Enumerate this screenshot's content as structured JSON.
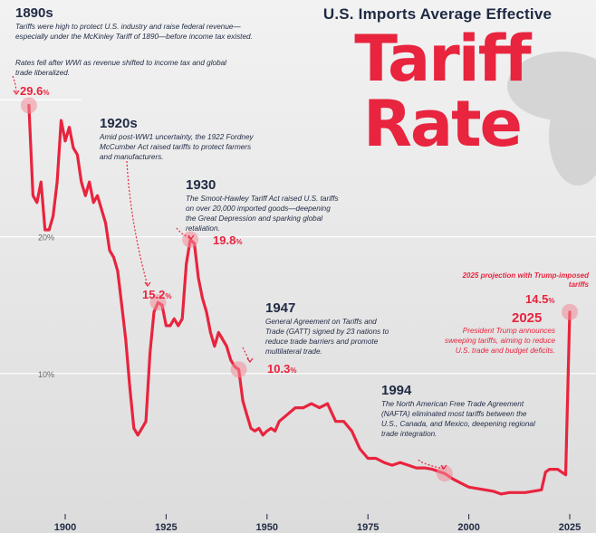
{
  "title": {
    "subtitle": "U.S. Imports Average Effective",
    "line1": "Tariff",
    "line2": "Rate"
  },
  "colors": {
    "accent": "#e8243e",
    "navy": "#1f2a44",
    "background": "#ececec"
  },
  "annotations": {
    "a1890s": {
      "era": "1890s",
      "note": "Tariffs were high to protect U.S. industry and raise federal revenue—especially under the McKinley Tariff of 1890—before income tax existed.",
      "note2": "Rates fell after WWI as revenue shifted to income tax and global trade liberalized."
    },
    "a1920s": {
      "era": "1920s",
      "note": "Amid post-WW1 uncertainty, the 1922 Fordney McCumber Act raised tariffs to protect farmers and manufacturers."
    },
    "a1930": {
      "era": "1930",
      "note": "The Smoot-Hawley Tariff Act raised U.S. tariffs on over 20,000 imported goods—deepening the Great Depression and sparking global retaliation."
    },
    "a1947": {
      "era": "1947",
      "note": "General Agreement on Tariffs and Trade (GATT) signed by 23 nations to reduce trade barriers and promote multilateral trade."
    },
    "a1994": {
      "era": "1994",
      "note": "The North American Free Trade Agreement (NAFTA) eliminated most tariffs between the U.S., Canada, and Mexico, deepening regional trade integration."
    },
    "a2025": {
      "era": "2025",
      "note": "President Trump announces sweeping tariffs, aiming to reduce U.S. trade and budget deficits.",
      "projection": "2025 projection with Trump-imposed tariffs"
    }
  },
  "chart_data": {
    "type": "line",
    "title": "U.S. Imports Average Effective Tariff Rate",
    "xlabel": "",
    "ylabel": "",
    "xlim": [
      1890,
      2025
    ],
    "ylim": [
      0,
      30
    ],
    "x_ticks": [
      1900,
      1925,
      1950,
      1975,
      2000,
      2025
    ],
    "y_ticks": [
      {
        "value": 20,
        "label": "20%"
      },
      {
        "value": 10,
        "label": "10%"
      }
    ],
    "grid": true,
    "series": [
      {
        "x": [
          1891,
          1892,
          1893,
          1894,
          1895,
          1896,
          1897,
          1898,
          1899,
          1900,
          1901,
          1902,
          1903,
          1904,
          1905,
          1906,
          1907,
          1908,
          1909,
          1910,
          1911,
          1912,
          1913,
          1914,
          1915,
          1916,
          1917,
          1918,
          1919,
          1920,
          1921,
          1922,
          1923,
          1924,
          1925,
          1926,
          1927,
          1928,
          1929,
          1930,
          1931,
          1932,
          1933,
          1934,
          1935,
          1936,
          1937,
          1938,
          1939,
          1940,
          1941,
          1942,
          1943,
          1944,
          1945,
          1946,
          1947,
          1948,
          1949,
          1950,
          1951,
          1952,
          1953,
          1955,
          1957,
          1959,
          1961,
          1963,
          1965,
          1967,
          1969,
          1971,
          1973,
          1975,
          1977,
          1979,
          1981,
          1983,
          1985,
          1987,
          1989,
          1991,
          1993,
          1994,
          1996,
          1998,
          2000,
          2002,
          2004,
          2006,
          2008,
          2010,
          2012,
          2014,
          2016,
          2018,
          2019,
          2020,
          2022,
          2023,
          2024,
          2025
        ],
        "y": [
          29.6,
          23.0,
          22.5,
          24.0,
          20.5,
          20.5,
          21.5,
          24.0,
          28.5,
          27.0,
          28.0,
          26.5,
          26.0,
          24.0,
          23.0,
          24.0,
          22.5,
          23.0,
          22.0,
          21.0,
          19.0,
          18.5,
          17.5,
          15.0,
          12.5,
          9.0,
          6.0,
          5.5,
          6.0,
          6.5,
          11.5,
          14.5,
          15.2,
          15.0,
          13.5,
          13.5,
          14.0,
          13.5,
          14.0,
          18.0,
          19.8,
          19.5,
          17.0,
          15.5,
          14.5,
          13.0,
          12.0,
          13.0,
          12.5,
          12.0,
          11.0,
          10.5,
          10.3,
          8.0,
          7.0,
          6.0,
          5.8,
          6.0,
          5.5,
          5.8,
          6.0,
          5.8,
          6.5,
          7.0,
          7.5,
          7.5,
          7.8,
          7.5,
          7.8,
          6.5,
          6.5,
          5.8,
          4.5,
          3.8,
          3.8,
          3.5,
          3.3,
          3.5,
          3.3,
          3.1,
          3.1,
          3.0,
          2.8,
          2.7,
          2.3,
          2.0,
          1.7,
          1.6,
          1.5,
          1.4,
          1.2,
          1.3,
          1.3,
          1.3,
          1.4,
          1.5,
          2.8,
          3.0,
          3.0,
          2.8,
          2.6,
          14.5
        ]
      }
    ],
    "data_labels": [
      {
        "label": "29.6",
        "unit": "%"
      },
      {
        "label": "15.2",
        "unit": "%"
      },
      {
        "label": "19.8",
        "unit": "%"
      },
      {
        "label": "10.3",
        "unit": "%"
      },
      {
        "label": "14.5",
        "unit": "%"
      }
    ]
  }
}
